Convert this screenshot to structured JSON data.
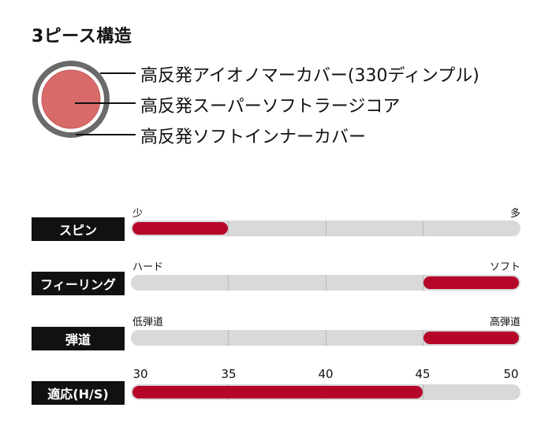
{
  "title": "3ピース構造",
  "structure": {
    "labels": [
      "高反発アイオノマーカバー(330ディンプル)",
      "高反発スーパーソフトラージコア",
      "高反発ソフトインナーカバー"
    ]
  },
  "ratings": [
    {
      "label": "スピン",
      "left": "少",
      "right": "多"
    },
    {
      "label": "フィーリング",
      "left": "ハード",
      "right": "ソフト"
    },
    {
      "label": "弾道",
      "left": "低弾道",
      "right": "高弾道"
    },
    {
      "label": "適応(H/S)",
      "ticks": [
        "30",
        "35",
        "40",
        "45",
        "50"
      ]
    }
  ],
  "colors": {
    "accent": "#b5062a",
    "core": "#d96a6a",
    "track": "#d9d9d9"
  }
}
